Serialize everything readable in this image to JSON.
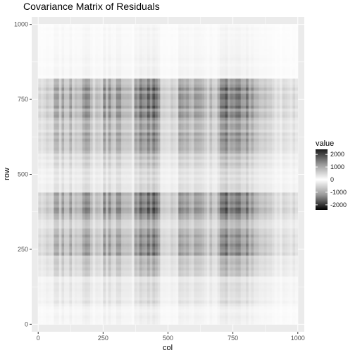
{
  "chart_data": {
    "type": "heatmap",
    "title": "Covariance Matrix of Residuals",
    "xlabel": "col",
    "ylabel": "row",
    "xlim": [
      -25,
      1025
    ],
    "ylim": [
      -25,
      1025
    ],
    "x_ticks": [
      0,
      250,
      500,
      750,
      1000
    ],
    "x_tick_labels": [
      "0",
      "250",
      "500",
      "750",
      "1000"
    ],
    "y_ticks": [
      0,
      250,
      500,
      750,
      1000
    ],
    "y_tick_labels": [
      "0",
      "250",
      "500",
      "750",
      "1000"
    ],
    "panel_background": "#ebebeb",
    "grid": true,
    "legend": {
      "title": "value",
      "position": "right",
      "breaks": [
        2000,
        1000,
        0,
        -1000,
        -2000
      ],
      "labels": [
        "2000",
        "1000",
        "0",
        "-1000",
        "-2000"
      ],
      "limits": [
        -2400,
        2400
      ]
    },
    "row_profile": [
      {
        "from": 0,
        "to": 60,
        "value": -140
      },
      {
        "from": 60,
        "to": 160,
        "value": -260
      },
      {
        "from": 160,
        "to": 230,
        "value": -520
      },
      {
        "from": 230,
        "to": 300,
        "value": -880
      },
      {
        "from": 300,
        "to": 350,
        "value": -650
      },
      {
        "from": 350,
        "to": 440,
        "value": -1100
      },
      {
        "from": 440,
        "to": 520,
        "value": -300
      },
      {
        "from": 520,
        "to": 570,
        "value": -460
      },
      {
        "from": 570,
        "to": 690,
        "value": -780
      },
      {
        "from": 690,
        "to": 820,
        "value": -1000
      },
      {
        "from": 820,
        "to": 930,
        "value": -110
      },
      {
        "from": 930,
        "to": 1000,
        "value": -80
      }
    ],
    "column_profile": [
      {
        "from": 0,
        "to": 60,
        "value": 0.35
      },
      {
        "from": 60,
        "to": 150,
        "value": 0.65
      },
      {
        "from": 150,
        "to": 200,
        "value": 0.8
      },
      {
        "from": 200,
        "to": 250,
        "value": 0.55
      },
      {
        "from": 250,
        "to": 320,
        "value": 0.85
      },
      {
        "from": 320,
        "to": 370,
        "value": 0.5
      },
      {
        "from": 370,
        "to": 470,
        "value": 1.15
      },
      {
        "from": 470,
        "to": 540,
        "value": 0.4
      },
      {
        "from": 540,
        "to": 640,
        "value": 0.85
      },
      {
        "from": 640,
        "to": 700,
        "value": 0.6
      },
      {
        "from": 700,
        "to": 830,
        "value": 1.1
      },
      {
        "from": 830,
        "to": 900,
        "value": 0.55
      },
      {
        "from": 900,
        "to": 1000,
        "value": 0.3
      }
    ]
  }
}
